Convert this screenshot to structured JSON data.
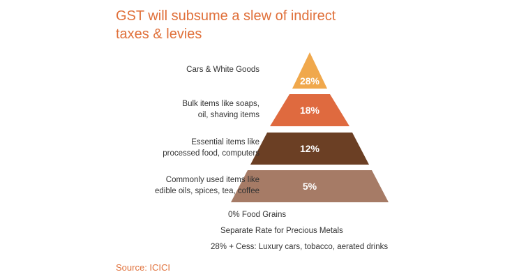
{
  "title_lines": [
    "GST will subsume a slew of indirect",
    "taxes & levies"
  ],
  "tiers": [
    {
      "label_lines": [
        "Cars & White Goods"
      ],
      "rate": "28%",
      "color": "#f0a84c"
    },
    {
      "label_lines": [
        "Bulk items like soaps,",
        "oil, shaving items"
      ],
      "rate": "18%",
      "color": "#df6a3f"
    },
    {
      "label_lines": [
        "Essential items like",
        "processed food, computers"
      ],
      "rate": "12%",
      "color": "#6b3f24"
    },
    {
      "label_lines": [
        "Commonly used items like",
        "edible oils, spices, tea, coffee"
      ],
      "rate": "5%",
      "color": "#a67b66"
    }
  ],
  "notes": [
    "0% Food Grains",
    "Separate Rate for Precious Metals",
    "28% + Cess: Luxury cars, tobacco, aerated drinks"
  ],
  "source": "Source: ICICI"
}
